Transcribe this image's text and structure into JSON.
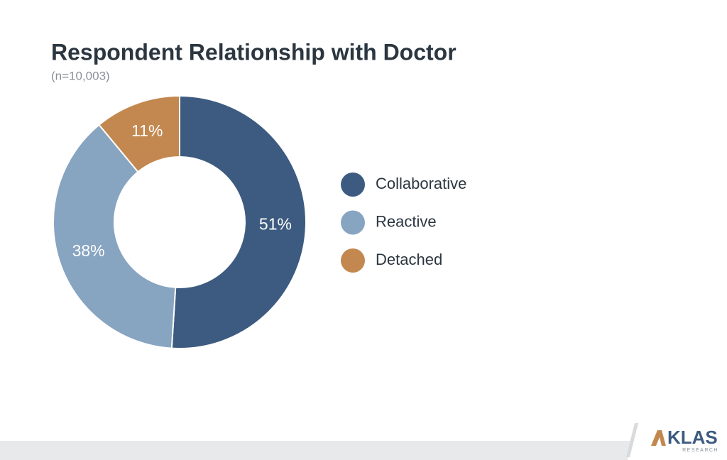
{
  "chart_data": {
    "type": "pie",
    "donut": true,
    "title": "Respondent Relationship with Doctor",
    "subtitle": "(n=10,003)",
    "categories": [
      "Collaborative",
      "Reactive",
      "Detached"
    ],
    "values": [
      51,
      38,
      11
    ],
    "value_labels": [
      "51%",
      "38%",
      "11%"
    ],
    "colors": [
      "#3d5b80",
      "#87a4c1",
      "#c3884f"
    ],
    "legend": "right"
  },
  "footer": {
    "logo": "KLAS",
    "logo_sub": "RESEARCH"
  }
}
